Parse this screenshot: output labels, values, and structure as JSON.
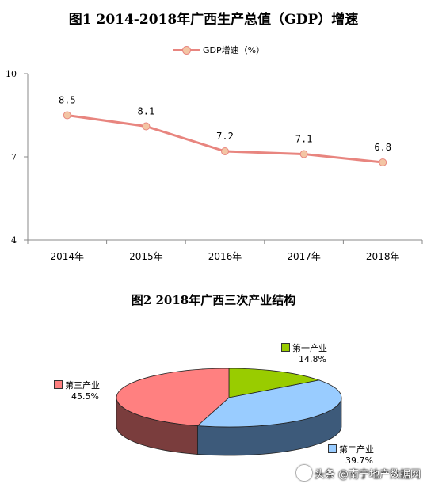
{
  "chart_data": [
    {
      "type": "line",
      "title": "图1  2014-2018年广西生产总值（GDP）增速",
      "categories": [
        "2014年",
        "2015年",
        "2016年",
        "2017年",
        "2018年"
      ],
      "series": [
        {
          "name": "GDP增速（%）",
          "values": [
            8.5,
            8.1,
            7.2,
            7.1,
            6.8
          ],
          "color": "#e8857f",
          "marker_color": "#f3c5a4"
        }
      ],
      "data_labels": [
        "8.5",
        "8.1",
        "7.2",
        "7.1",
        "6.8"
      ],
      "ylim": [
        4,
        10
      ],
      "yticks": [
        "4",
        "7",
        "10"
      ],
      "legend": "top-center",
      "grid": false
    },
    {
      "type": "pie",
      "title": "图2  2018年广西三次产业结构",
      "three_d": true,
      "slices": [
        {
          "name": "第一产业",
          "value": 14.8,
          "label": "14.8%",
          "color": "#99cc00",
          "side_color": "#5a7a00"
        },
        {
          "name": "第二产业",
          "value": 39.7,
          "label": "39.7%",
          "color": "#99ccff",
          "side_color": "#3d5a7a"
        },
        {
          "name": "第三产业",
          "value": 45.5,
          "label": "45.5%",
          "color": "#ff8080",
          "side_color": "#7a3d3d"
        }
      ]
    }
  ],
  "watermark": {
    "text": "头条 @南宁地产数据网"
  }
}
